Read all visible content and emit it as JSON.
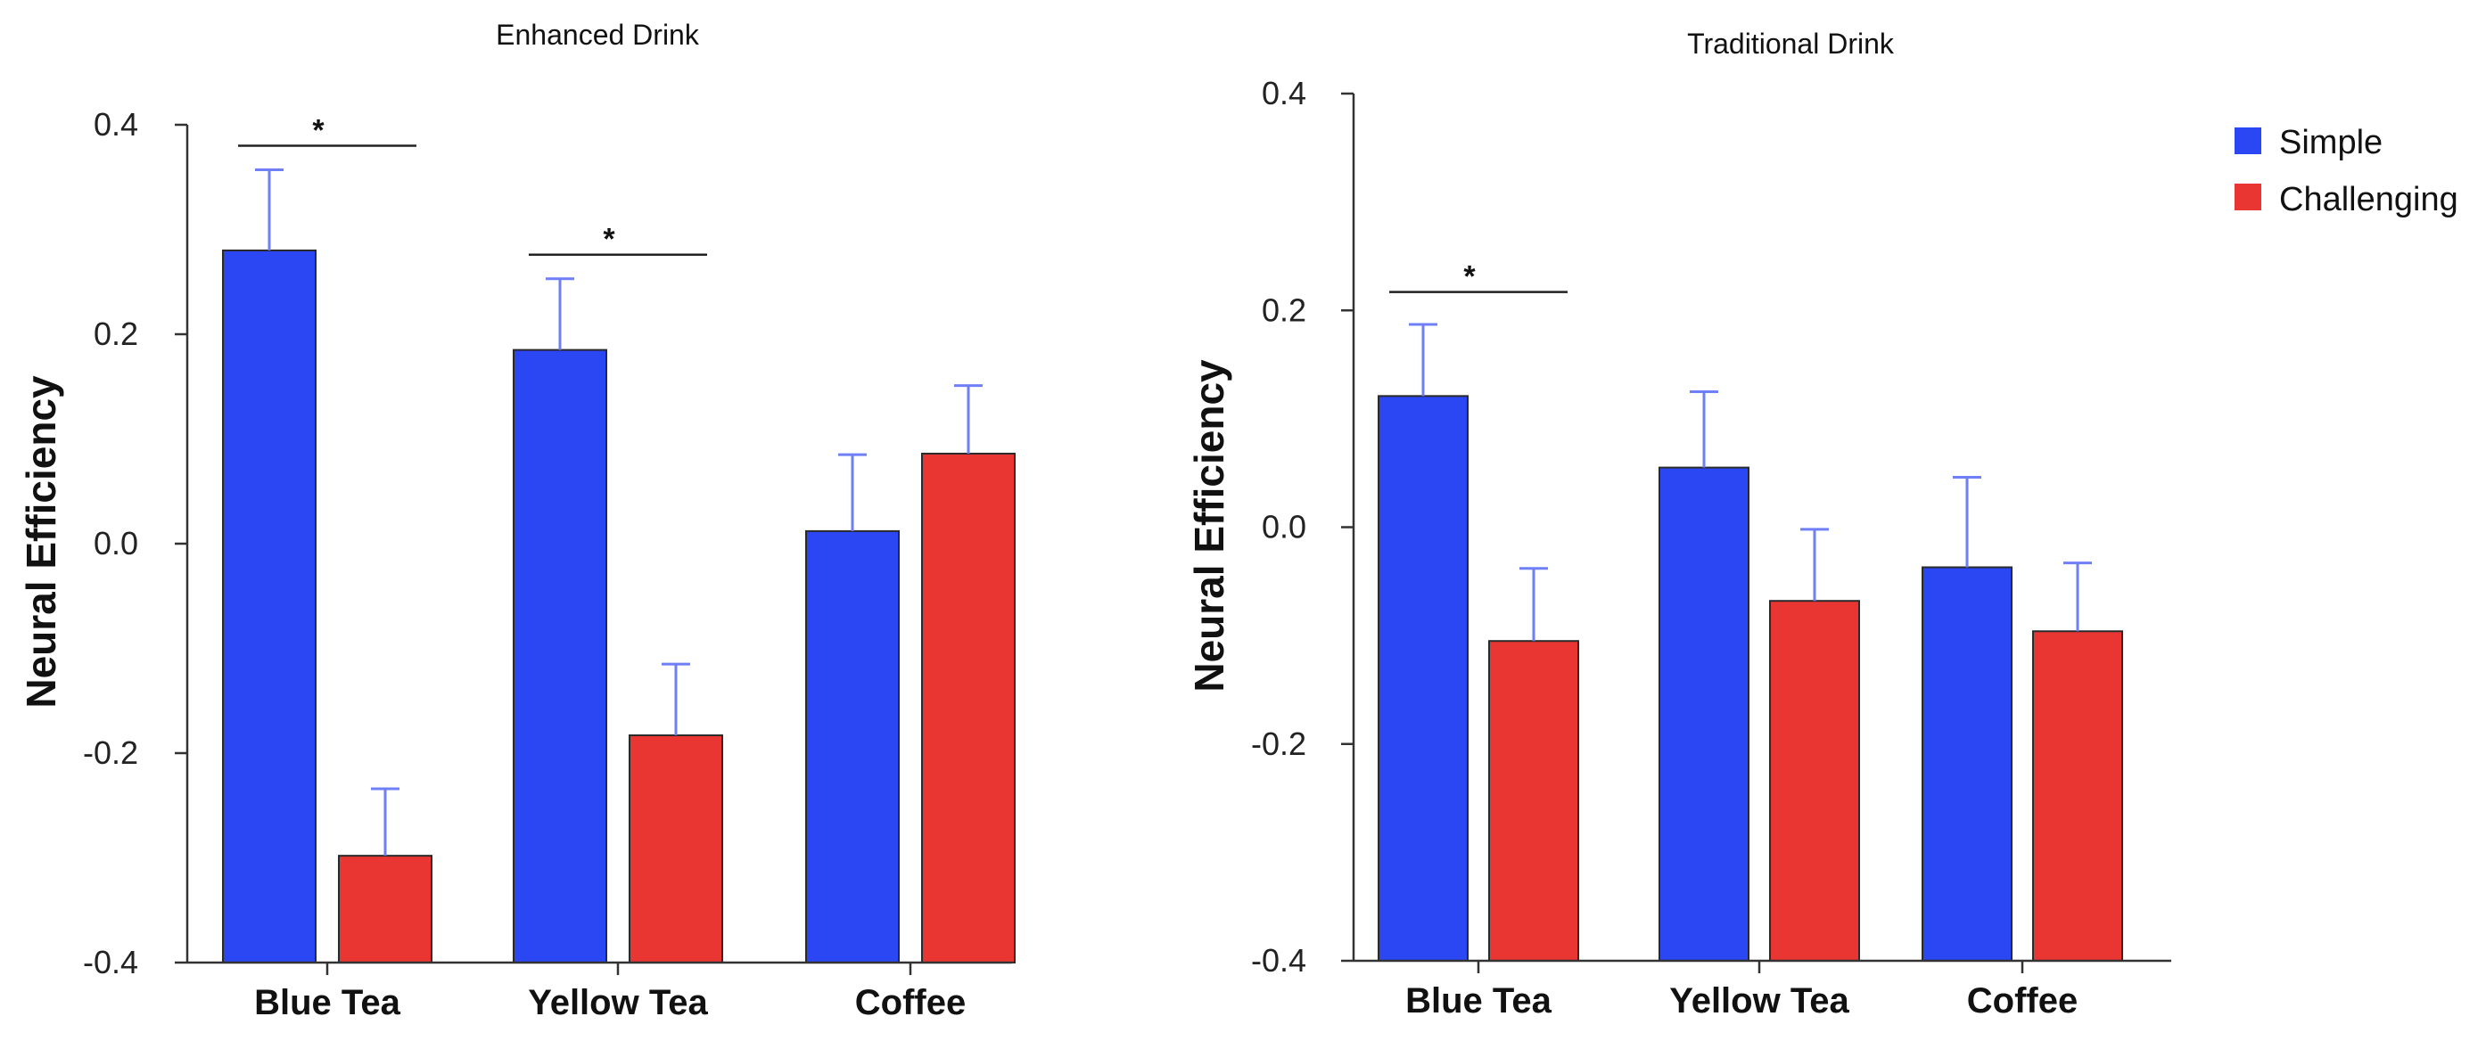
{
  "colors": {
    "simple": "#2b47f4",
    "challenging": "#ea3632",
    "error_bar": "#6f7ff7",
    "axis": "#333333"
  },
  "legend": [
    {
      "name": "Simple",
      "color": "#2b47f4"
    },
    {
      "name": "Challenging",
      "color": "#ea3632"
    }
  ],
  "chart_data": [
    {
      "type": "bar",
      "title": "Enhanced Drink",
      "xlabel": "",
      "ylabel": "Neural Efficiency",
      "ylim": [
        -0.4,
        0.4
      ],
      "yticks": [
        0.4,
        0.2,
        0.0,
        -0.2,
        -0.4
      ],
      "ytick_labels": [
        "0.4",
        "0.2",
        "0.0",
        "-0.2",
        "-0.4"
      ],
      "categories": [
        "Blue Tea",
        "Yellow Tea",
        "Coffee"
      ],
      "series": [
        {
          "name": "Simple",
          "values": [
            0.28,
            0.185,
            0.012
          ],
          "errors": [
            0.077,
            0.068,
            0.073
          ]
        },
        {
          "name": "Challenging",
          "values": [
            -0.298,
            -0.183,
            0.086
          ],
          "errors": [
            0.064,
            0.068,
            0.065
          ]
        }
      ],
      "significance": [
        {
          "category": "Blue Tea",
          "label": "*",
          "y": 0.38
        },
        {
          "category": "Yellow Tea",
          "label": "*",
          "y": 0.276
        }
      ]
    },
    {
      "type": "bar",
      "title": "Traditional Drink",
      "xlabel": "",
      "ylabel": "Neural Efficiency",
      "ylim": [
        -0.4,
        0.4
      ],
      "yticks": [
        0.4,
        0.2,
        0.0,
        -0.2,
        -0.4
      ],
      "ytick_labels": [
        "0.4",
        "0.2",
        "0.0",
        "-0.2",
        "-0.4"
      ],
      "categories": [
        "Blue Tea",
        "Yellow Tea",
        "Coffee"
      ],
      "series": [
        {
          "name": "Simple",
          "values": [
            0.121,
            0.055,
            -0.037
          ],
          "errors": [
            0.066,
            0.07,
            0.083
          ]
        },
        {
          "name": "Challenging",
          "values": [
            -0.105,
            -0.068,
            -0.096
          ],
          "errors": [
            0.067,
            0.066,
            0.063
          ]
        }
      ],
      "significance": [
        {
          "category": "Blue Tea",
          "label": "*",
          "y": 0.217
        }
      ]
    }
  ]
}
